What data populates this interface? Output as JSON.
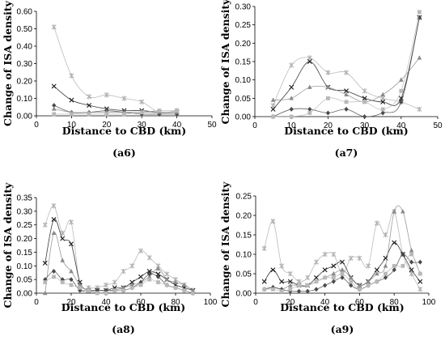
{
  "figure": {
    "colors": {
      "light": "#b0b0b0",
      "mid": "#8a8a8a",
      "dark": "#1a1a1a",
      "diamond": "#4a4a4a",
      "square": "#b8b8b8",
      "axis": "#000000"
    }
  },
  "chart_data": [
    {
      "type": "scatter",
      "panel_label": "(a6)",
      "xlabel": "Distance to CBD (km)",
      "ylabel": "Change of ISA density",
      "xlim": [
        0,
        50
      ],
      "ylim": [
        0,
        0.6
      ],
      "xticks": [
        "0",
        "10",
        "20",
        "30",
        "40",
        "50"
      ],
      "yticks": [
        "0.00",
        "0.10",
        "0.20",
        "0.30",
        "0.40",
        "0.50",
        "0.60"
      ],
      "grid": false,
      "legend": "none",
      "series": [
        {
          "marker": "star",
          "color": "#b0b0b0",
          "x": [
            5,
            10,
            15,
            20,
            25,
            30,
            35,
            40
          ],
          "y": [
            0.51,
            0.23,
            0.11,
            0.12,
            0.1,
            0.08,
            0.02,
            0.03
          ]
        },
        {
          "marker": "x",
          "color": "#1a1a1a",
          "x": [
            5,
            10,
            15,
            20,
            25,
            30,
            35,
            40
          ],
          "y": [
            0.17,
            0.09,
            0.06,
            0.04,
            0.03,
            0.03,
            0.02,
            0.02
          ]
        },
        {
          "marker": "diamond",
          "color": "#4a4a4a",
          "x": [
            5,
            10,
            15,
            20,
            25,
            30,
            35,
            40
          ],
          "y": [
            0.06,
            0.02,
            0.02,
            0.03,
            0.02,
            0.01,
            0.01,
            0.01
          ]
        },
        {
          "marker": "triangle",
          "color": "#8a8a8a",
          "x": [
            5,
            10,
            15,
            20,
            25,
            30,
            35,
            40
          ],
          "y": [
            0.04,
            0.02,
            0.02,
            0.02,
            0.02,
            0.02,
            0.02,
            0.02
          ]
        },
        {
          "marker": "square",
          "color": "#b8b8b8",
          "x": [
            5,
            10,
            15,
            20,
            25,
            30,
            35,
            40
          ],
          "y": [
            0.01,
            0.01,
            0.01,
            0.01,
            0.01,
            0.02,
            0.03,
            0.03
          ]
        }
      ]
    },
    {
      "type": "scatter",
      "panel_label": "(a7)",
      "xlabel": "Distance to CBD (km)",
      "ylabel": "Change of ISA density",
      "xlim": [
        0,
        50
      ],
      "ylim": [
        0,
        0.3
      ],
      "xticks": [
        "0",
        "10",
        "20",
        "30",
        "40",
        "50"
      ],
      "yticks": [
        "0.00",
        "0.05",
        "0.10",
        "0.15",
        "0.20",
        "0.25",
        "0.30"
      ],
      "grid": false,
      "legend": "none",
      "series": [
        {
          "marker": "star",
          "color": "#b0b0b0",
          "x": [
            5,
            10,
            15,
            20,
            25,
            30,
            35,
            40,
            45
          ],
          "y": [
            0.03,
            0.14,
            0.16,
            0.12,
            0.12,
            0.07,
            0.05,
            0.04,
            0.02
          ]
        },
        {
          "marker": "x",
          "color": "#1a1a1a",
          "x": [
            5,
            10,
            15,
            20,
            25,
            30,
            35,
            40,
            45
          ],
          "y": [
            0.02,
            0.08,
            0.15,
            0.08,
            0.07,
            0.05,
            0.04,
            0.05,
            0.27
          ]
        },
        {
          "marker": "triangle",
          "color": "#8a8a8a",
          "x": [
            5,
            10,
            15,
            20,
            25,
            30,
            35,
            40,
            45
          ],
          "y": [
            0.045,
            0.05,
            0.08,
            0.08,
            0.06,
            0.04,
            0.06,
            0.1,
            0.16
          ]
        },
        {
          "marker": "diamond",
          "color": "#4a4a4a",
          "x": [
            5,
            10,
            15,
            20,
            25,
            30,
            35,
            40,
            45
          ],
          "y": [
            0.0,
            0.02,
            0.02,
            0.01,
            0.02,
            0.0,
            0.01,
            0.04,
            0.27
          ]
        },
        {
          "marker": "square",
          "color": "#b8b8b8",
          "x": [
            5,
            10,
            15,
            20,
            25,
            30,
            35,
            40,
            45
          ],
          "y": [
            0.0,
            0.0,
            0.01,
            0.05,
            0.04,
            0.04,
            0.02,
            0.07,
            0.285
          ]
        }
      ]
    },
    {
      "type": "scatter",
      "panel_label": "(a8)",
      "xlabel": "Distance to CBD (km)",
      "ylabel": "Change of ISA density",
      "xlim": [
        0,
        100
      ],
      "ylim": [
        0,
        0.35
      ],
      "xticks": [
        "0",
        "20",
        "40",
        "60",
        "80",
        "100"
      ],
      "yticks": [
        "0.00",
        "0.05",
        "0.10",
        "0.15",
        "0.20",
        "0.25",
        "0.30",
        "0.35"
      ],
      "grid": false,
      "legend": "none",
      "series": [
        {
          "marker": "star",
          "color": "#b0b0b0",
          "x": [
            5,
            10,
            15,
            20,
            25,
            30,
            35,
            40,
            45,
            50,
            55,
            60,
            65,
            70,
            75,
            80,
            85,
            90
          ],
          "y": [
            0.25,
            0.32,
            0.22,
            0.26,
            0.03,
            0.02,
            0.02,
            0.03,
            0.04,
            0.08,
            0.1,
            0.155,
            0.13,
            0.1,
            0.07,
            0.05,
            0.03,
            0.01
          ]
        },
        {
          "marker": "x",
          "color": "#1a1a1a",
          "x": [
            5,
            10,
            15,
            20,
            25,
            30,
            35,
            40,
            45,
            50,
            55,
            60,
            65,
            70,
            75,
            80,
            85,
            90
          ],
          "y": [
            0.11,
            0.27,
            0.2,
            0.18,
            0.04,
            0.01,
            0.01,
            0.01,
            0.02,
            0.02,
            0.04,
            0.06,
            0.08,
            0.07,
            0.05,
            0.03,
            0.02,
            0.01
          ]
        },
        {
          "marker": "triangle",
          "color": "#8a8a8a",
          "x": [
            5,
            10,
            15,
            20,
            25,
            30,
            35,
            40,
            45,
            50,
            55,
            60,
            65,
            70,
            75,
            80,
            85,
            90
          ],
          "y": [
            0.0,
            0.22,
            0.12,
            0.08,
            0.03,
            0.01,
            0.01,
            0.01,
            0.01,
            0.02,
            0.03,
            0.04,
            0.06,
            0.09,
            0.05,
            0.04,
            0.03,
            0.01
          ]
        },
        {
          "marker": "diamond",
          "color": "#4a4a4a",
          "x": [
            5,
            10,
            15,
            20,
            25,
            30,
            35,
            40,
            45,
            50,
            55,
            60,
            65,
            70,
            75,
            80,
            85,
            90
          ],
          "y": [
            0.05,
            0.08,
            0.05,
            0.05,
            0.01,
            0.01,
            0.01,
            0.01,
            0.01,
            0.01,
            0.02,
            0.04,
            0.07,
            0.06,
            0.03,
            0.02,
            0.01,
            0.0
          ]
        },
        {
          "marker": "square",
          "color": "#b8b8b8",
          "x": [
            5,
            10,
            15,
            20,
            25,
            30,
            35,
            40,
            45,
            50,
            55,
            60,
            65,
            70,
            75,
            80,
            85,
            90
          ],
          "y": [
            0.04,
            0.06,
            0.04,
            0.03,
            0.02,
            0.01,
            0.0,
            0.0,
            0.01,
            0.01,
            0.02,
            0.03,
            0.05,
            0.04,
            0.03,
            0.02,
            0.01,
            0.0
          ]
        }
      ]
    },
    {
      "type": "scatter",
      "panel_label": "(a9)",
      "xlabel": "Distance to CBD (km)",
      "ylabel": "Change of ISA density",
      "xlim": [
        0,
        100
      ],
      "ylim": [
        0,
        0.25
      ],
      "xticks": [
        "0",
        "20",
        "40",
        "60",
        "80",
        "100"
      ],
      "yticks": [
        "0.00",
        "0.05",
        "0.10",
        "0.15",
        "0.20",
        "0.25"
      ],
      "grid": false,
      "legend": "none",
      "series": [
        {
          "marker": "star",
          "color": "#b0b0b0",
          "x": [
            5,
            10,
            15,
            20,
            25,
            30,
            35,
            40,
            45,
            50,
            55,
            60,
            65,
            70,
            75,
            80,
            85,
            90,
            95
          ],
          "y": [
            0.115,
            0.185,
            0.07,
            0.05,
            0.03,
            0.04,
            0.08,
            0.1,
            0.1,
            0.05,
            0.09,
            0.09,
            0.07,
            0.18,
            0.15,
            0.21,
            0.1,
            0.05,
            0.01
          ]
        },
        {
          "marker": "x",
          "color": "#1a1a1a",
          "x": [
            5,
            10,
            15,
            20,
            25,
            30,
            35,
            40,
            45,
            50,
            55,
            60,
            65,
            70,
            75,
            80,
            85,
            90,
            95
          ],
          "y": [
            0.03,
            0.06,
            0.03,
            0.03,
            0.02,
            0.02,
            0.04,
            0.06,
            0.07,
            0.08,
            0.04,
            0.02,
            0.03,
            0.06,
            0.09,
            0.13,
            0.1,
            0.06,
            0.03
          ]
        },
        {
          "marker": "triangle",
          "color": "#8a8a8a",
          "x": [
            5,
            10,
            15,
            20,
            25,
            30,
            35,
            40,
            45,
            50,
            55,
            60,
            65,
            70,
            75,
            80,
            85,
            90,
            95
          ],
          "y": [
            0.01,
            0.015,
            0.01,
            0.02,
            0.02,
            0.02,
            0.03,
            0.04,
            0.05,
            0.06,
            0.04,
            0.02,
            0.03,
            0.05,
            0.07,
            0.21,
            0.21,
            0.11,
            0.05
          ]
        },
        {
          "marker": "diamond",
          "color": "#4a4a4a",
          "x": [
            5,
            10,
            15,
            20,
            25,
            30,
            35,
            40,
            45,
            50,
            55,
            60,
            65,
            70,
            75,
            80,
            85,
            90,
            95
          ],
          "y": [
            0.01,
            0.015,
            0.01,
            0.005,
            0.005,
            0.005,
            0.01,
            0.02,
            0.03,
            0.04,
            0.02,
            0.01,
            0.02,
            0.03,
            0.04,
            0.06,
            0.1,
            0.08,
            0.08
          ]
        },
        {
          "marker": "square",
          "color": "#b8b8b8",
          "x": [
            5,
            10,
            15,
            20,
            25,
            30,
            35,
            40,
            45,
            50,
            55,
            60,
            65,
            70,
            75,
            80,
            85,
            90,
            95
          ],
          "y": [
            0.01,
            0.01,
            0.005,
            0.01,
            0.02,
            0.02,
            0.03,
            0.04,
            0.04,
            0.05,
            0.03,
            0.01,
            0.02,
            0.03,
            0.05,
            0.07,
            0.07,
            0.1,
            0.05
          ]
        }
      ]
    }
  ]
}
